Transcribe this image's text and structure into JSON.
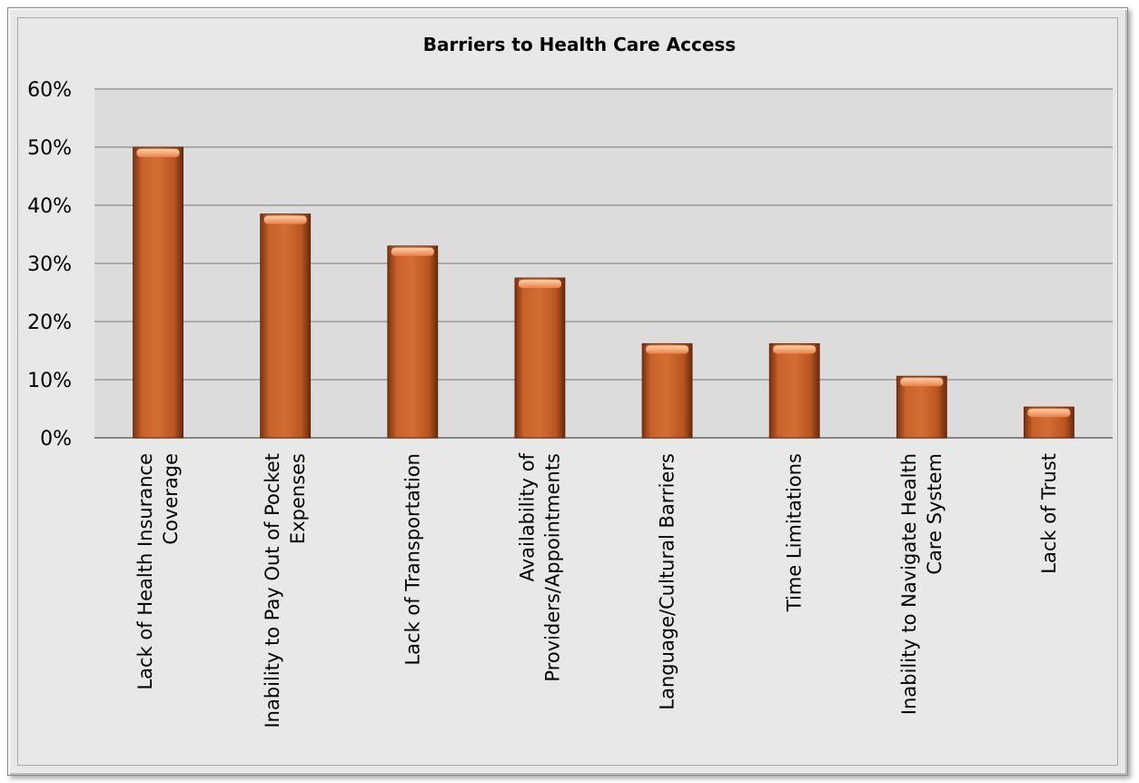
{
  "chart_data": {
    "type": "bar",
    "title": "Barriers to Health Care Access",
    "xlabel": "",
    "ylabel": "",
    "ylim": [
      0,
      60
    ],
    "yticks": [
      0,
      10,
      20,
      30,
      40,
      50,
      60
    ],
    "ytick_format": "%",
    "grid": true,
    "legend": "none",
    "bar_color": "#c8622a",
    "plot_bg": "#dcdcdc",
    "categories": [
      [
        "Lack of Health Insurance",
        "Coverage"
      ],
      [
        "Inability to Pay Out of Pocket",
        "Expenses"
      ],
      [
        "Lack of Transportation"
      ],
      [
        "Availability of",
        "Providers/Appointments"
      ],
      [
        "Language/Cultural Barriers"
      ],
      [
        "Time Limitations"
      ],
      [
        "Inability to Navigate Health",
        "Care System"
      ],
      [
        "Lack of Trust"
      ]
    ],
    "values": [
      50,
      38.5,
      33,
      27.5,
      16.2,
      16.2,
      10.6,
      5.3
    ]
  }
}
